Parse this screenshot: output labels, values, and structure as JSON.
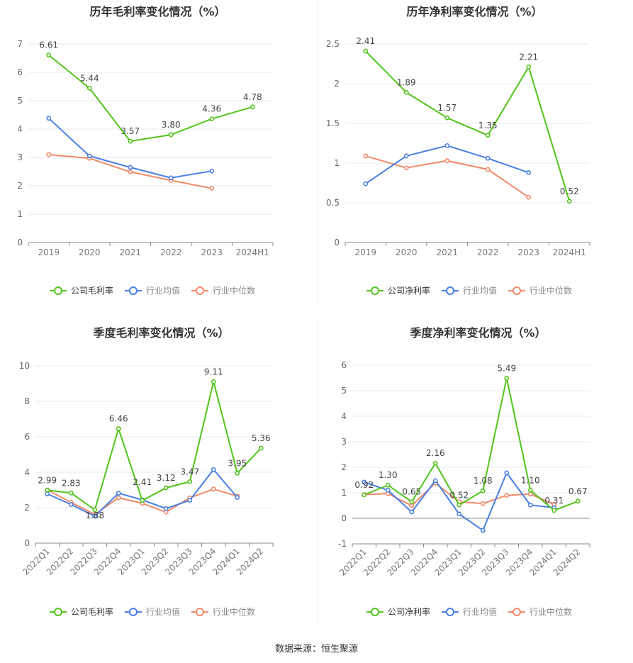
{
  "source": "数据来源：恒生聚源",
  "colors": {
    "company": "#52c41a",
    "avg": "#4a7fe3",
    "median": "#f08a6a"
  },
  "chart_data": [
    {
      "type": "line",
      "title": "历年毛利率变化情况（%）",
      "categories": [
        "2019",
        "2020",
        "2021",
        "2022",
        "2023",
        "2024H1"
      ],
      "ylim": [
        0,
        7
      ],
      "yticks": [
        0,
        1,
        2,
        3,
        4,
        5,
        6,
        7
      ],
      "grid": true,
      "legend_placement": "bottom",
      "series": [
        {
          "name": "公司毛利率",
          "values": [
            6.61,
            5.44,
            3.57,
            3.8,
            4.36,
            4.78
          ],
          "labels": [
            "6.61",
            "5.44",
            "3.57",
            "3.80",
            "4.36",
            "4.78"
          ]
        },
        {
          "name": "行业均值",
          "values": [
            4.38,
            3.05,
            2.65,
            2.28,
            2.52,
            null
          ]
        },
        {
          "name": "行业中位数",
          "values": [
            3.1,
            2.97,
            2.49,
            2.19,
            1.91,
            null
          ]
        }
      ]
    },
    {
      "type": "line",
      "title": "历年净利率变化情况（%）",
      "categories": [
        "2019",
        "2020",
        "2021",
        "2022",
        "2023",
        "2024H1"
      ],
      "ylim": [
        0,
        2.5
      ],
      "yticks": [
        0,
        0.5,
        1,
        1.5,
        2,
        2.5
      ],
      "grid": true,
      "legend_placement": "bottom",
      "series": [
        {
          "name": "公司净利率",
          "values": [
            2.41,
            1.89,
            1.57,
            1.35,
            2.21,
            0.52
          ],
          "labels": [
            "2.41",
            "1.89",
            "1.57",
            "1.35",
            "2.21",
            "0.52"
          ]
        },
        {
          "name": "行业均值",
          "values": [
            0.74,
            1.09,
            1.22,
            1.06,
            0.88,
            null
          ]
        },
        {
          "name": "行业中位数",
          "values": [
            1.09,
            0.94,
            1.03,
            0.92,
            0.57,
            null
          ]
        }
      ]
    },
    {
      "type": "line",
      "title": "季度毛利率变化情况（%）",
      "categories": [
        "2022Q1",
        "2022Q2",
        "2022Q3",
        "2022Q4",
        "2023Q1",
        "2023Q2",
        "2023Q3",
        "2023Q4",
        "2024Q1",
        "2024Q2"
      ],
      "ylim": [
        0,
        10
      ],
      "yticks": [
        0,
        2,
        4,
        6,
        8,
        10
      ],
      "grid": true,
      "legend_placement": "bottom",
      "series": [
        {
          "name": "公司毛利率",
          "values": [
            2.99,
            2.83,
            1.88,
            6.46,
            2.41,
            3.12,
            3.47,
            9.11,
            3.95,
            5.36
          ],
          "labels": [
            "2.99",
            "2.83",
            "1.88",
            "6.46",
            "2.41",
            "3.12",
            "3.47",
            "9.11",
            "3.95",
            "5.36"
          ]
        },
        {
          "name": "行业均值",
          "values": [
            2.78,
            2.18,
            1.52,
            2.82,
            2.44,
            1.95,
            2.42,
            4.15,
            2.58,
            null
          ]
        },
        {
          "name": "行业中位数",
          "values": [
            3.0,
            2.3,
            1.62,
            2.56,
            2.25,
            1.75,
            2.56,
            3.05,
            2.66,
            null
          ]
        }
      ]
    },
    {
      "type": "line",
      "title": "季度净利率变化情况（%）",
      "categories": [
        "2022Q1",
        "2022Q2",
        "2022Q3",
        "2022Q4",
        "2023Q1",
        "2023Q2",
        "2023Q3",
        "2023Q4",
        "2024Q1",
        "2024Q2"
      ],
      "ylim": [
        -1,
        6
      ],
      "yticks": [
        -1,
        0,
        1,
        2,
        3,
        4,
        5,
        6
      ],
      "grid": true,
      "legend_placement": "bottom",
      "series": [
        {
          "name": "公司净利率",
          "values": [
            0.92,
            1.3,
            0.65,
            2.16,
            0.52,
            1.08,
            5.49,
            1.1,
            0.31,
            0.67
          ],
          "labels": [
            "0.92",
            "1.30",
            "0.65",
            "2.16",
            "0.52",
            "1.08",
            "5.49",
            "1.10",
            "0.31",
            "0.67"
          ]
        },
        {
          "name": "行业均值",
          "values": [
            1.42,
            1.1,
            0.25,
            1.48,
            0.17,
            -0.47,
            1.78,
            0.52,
            0.42,
            null
          ]
        },
        {
          "name": "行业中位数",
          "values": [
            0.93,
            0.97,
            0.5,
            1.38,
            0.65,
            0.58,
            0.9,
            0.95,
            0.55,
            null
          ]
        }
      ]
    }
  ]
}
